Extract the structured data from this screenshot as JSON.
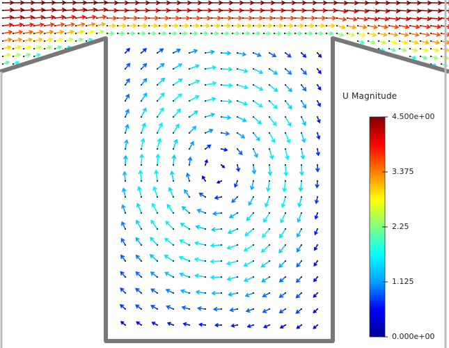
{
  "colorbar": {
    "title": "U Magnitude",
    "min": 0,
    "max": 4.5,
    "tick_labels": [
      "4.500e+00",
      "3.375",
      "2.25",
      "1.125",
      "0.000e+00"
    ],
    "tick_values": [
      4.5,
      3.375,
      2.25,
      1.125,
      0
    ],
    "colormap": [
      "#00008f",
      "#0000ff",
      "#00a0ff",
      "#00ffff",
      "#80ff80",
      "#ffff00",
      "#ff8000",
      "#ff0000",
      "#800000"
    ]
  },
  "colors": {
    "wall": "#777777",
    "domain_edge": "#bbbbbb",
    "node_dot": "#222222"
  },
  "flow": {
    "channel_speed_range": [
      2.0,
      4.5
    ],
    "cavity_vortex_max_speed": 1.6
  }
}
